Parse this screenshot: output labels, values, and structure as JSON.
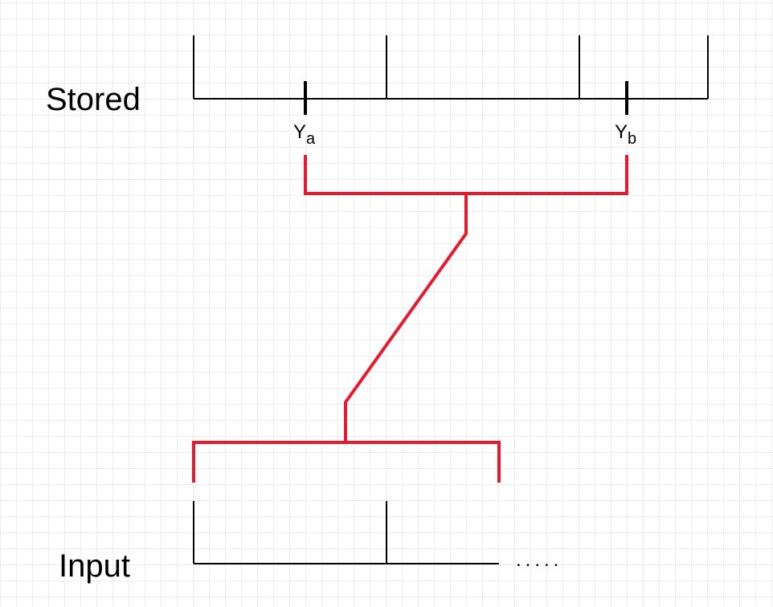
{
  "labels": {
    "stored": "Stored",
    "input": "Input",
    "marker_a": {
      "base": "Y",
      "sub": "a"
    },
    "marker_b": {
      "base": "Y",
      "sub": "b"
    },
    "continuation": "....."
  },
  "colors": {
    "structure": "#000000",
    "connector": "#e8192c",
    "grid": "#ececec",
    "background": "#ffffff"
  }
}
